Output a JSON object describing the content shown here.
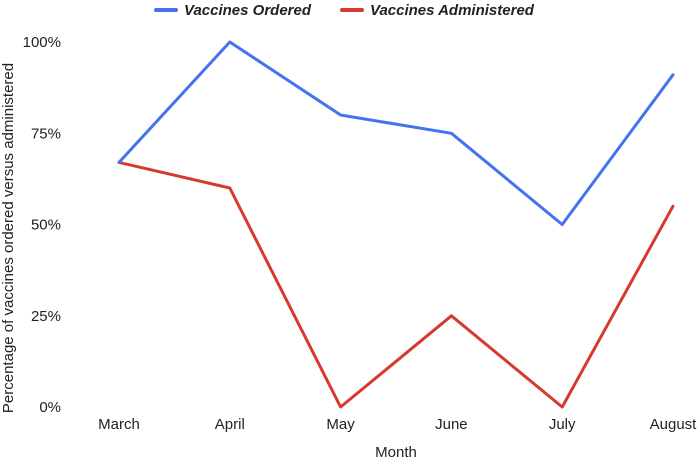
{
  "chart_data": {
    "type": "line",
    "categories": [
      "March",
      "April",
      "May",
      "June",
      "July",
      "August"
    ],
    "series": [
      {
        "name": "Vaccines Ordered",
        "color": "#4472f0",
        "values": [
          67,
          100,
          80,
          75,
          50,
          91
        ]
      },
      {
        "name": "Vaccines Administered",
        "color": "#d63a2e",
        "values": [
          67,
          60,
          0,
          25,
          0,
          55
        ]
      }
    ],
    "title": "",
    "xlabel": "Month",
    "ylabel": "Percentage of vaccines ordered versus administered",
    "ylim": [
      0,
      100
    ],
    "yticks": [
      "0%",
      "25%",
      "50%",
      "75%",
      "100%"
    ],
    "ytick_values": [
      0,
      25,
      50,
      75,
      100
    ],
    "grid": false,
    "legend_position": "top-center"
  }
}
